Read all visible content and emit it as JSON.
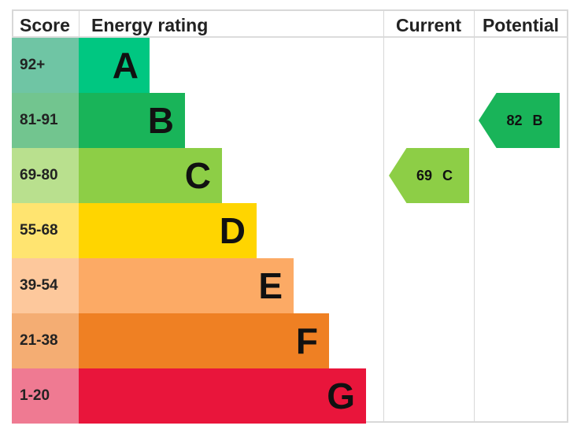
{
  "chart_data": {
    "type": "bar",
    "headers": {
      "score": "Score",
      "rating": "Energy rating",
      "current": "Current",
      "potential": "Potential"
    },
    "bands": [
      {
        "letter": "A",
        "range": "92+",
        "color": "#00c781",
        "tint": "#6fc5a4"
      },
      {
        "letter": "B",
        "range": "81-91",
        "color": "#19b459",
        "tint": "#72c58f"
      },
      {
        "letter": "C",
        "range": "69-80",
        "color": "#8dce46",
        "tint": "#b9e08e"
      },
      {
        "letter": "D",
        "range": "55-68",
        "color": "#ffd500",
        "tint": "#ffe470"
      },
      {
        "letter": "E",
        "range": "39-54",
        "color": "#fcaa65",
        "tint": "#fdc89c"
      },
      {
        "letter": "F",
        "range": "21-38",
        "color": "#ef8023",
        "tint": "#f4ad73"
      },
      {
        "letter": "G",
        "range": "1-20",
        "color": "#e9153b",
        "tint": "#ef7a92"
      }
    ],
    "current": {
      "value": 69,
      "band": "C",
      "label": "69 C"
    },
    "potential": {
      "value": 82,
      "band": "B",
      "label": "82 B"
    }
  }
}
